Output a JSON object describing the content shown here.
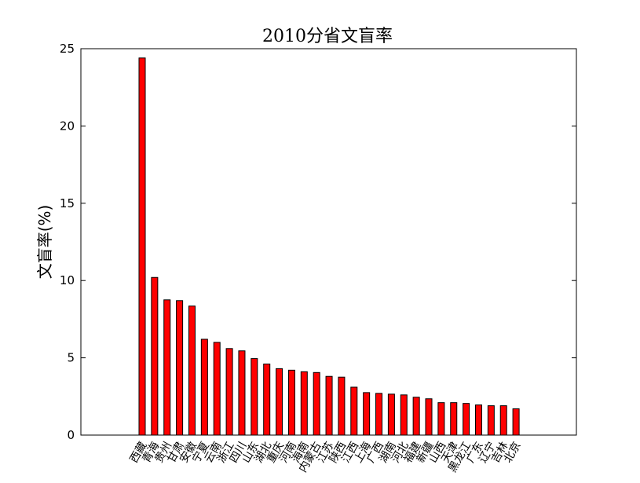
{
  "chart_data": {
    "type": "bar",
    "title": "2010分省文盲率",
    "xlabel": "",
    "ylabel": "文盲率(%)",
    "ylim": [
      0,
      25
    ],
    "yticks": [
      "0",
      "5",
      "10",
      "15",
      "20",
      "25"
    ],
    "grid": false,
    "bar_color": "#ff0000",
    "edge_color": "#000000",
    "categories": [
      "西藏",
      "青海",
      "贵州",
      "甘肃",
      "安徽",
      "宁夏",
      "云南",
      "浙江",
      "四川",
      "山东",
      "湖北",
      "重庆",
      "河南",
      "海南",
      "内蒙古",
      "江苏",
      "陕西",
      "江西",
      "上海",
      "广西",
      "湖南",
      "河北",
      "福建",
      "新疆",
      "山西",
      "天津",
      "黑龙江",
      "广东",
      "辽宁",
      "吉林",
      "北京"
    ],
    "values": [
      24.4,
      10.2,
      8.75,
      8.7,
      8.35,
      6.2,
      6.0,
      5.6,
      5.45,
      4.95,
      4.6,
      4.3,
      4.2,
      4.1,
      4.05,
      3.8,
      3.75,
      3.1,
      2.75,
      2.7,
      2.65,
      2.6,
      2.45,
      2.35,
      2.1,
      2.1,
      2.05,
      1.95,
      1.9,
      1.9,
      1.7
    ]
  }
}
